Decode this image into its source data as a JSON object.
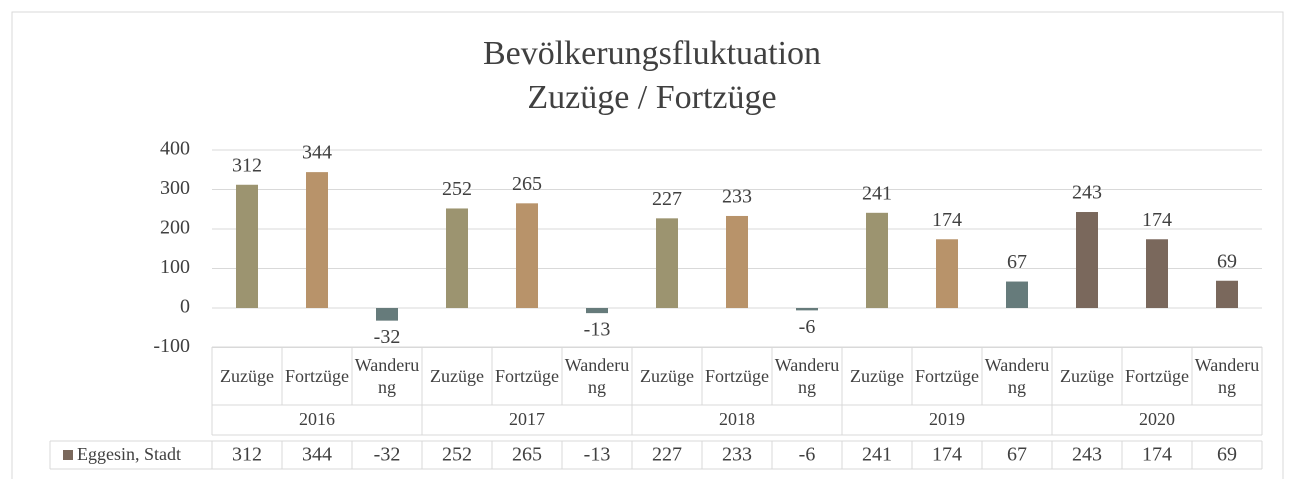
{
  "chart_data": {
    "type": "bar",
    "title": [
      "Bevölkerungsfluktuation",
      "Zuzüge / Fortzüge"
    ],
    "categories": [
      "Zuzüge",
      "Fortzüge",
      "Wanderung",
      "Zuzüge",
      "Fortzüge",
      "Wanderung",
      "Zuzüge",
      "Fortzüge",
      "Wanderung",
      "Zuzüge",
      "Fortzüge",
      "Wanderung",
      "Zuzüge",
      "Fortzüge",
      "Wanderung"
    ],
    "category_groups": [
      "2016",
      "2017",
      "2018",
      "2019",
      "2020"
    ],
    "series": [
      {
        "name": "Eggesin, Stadt",
        "color": "#7a685c",
        "values": [
          312,
          344,
          -32,
          252,
          265,
          -13,
          227,
          233,
          -6,
          241,
          174,
          67,
          243,
          174,
          69
        ],
        "colors": [
          "#9c9470",
          "#b8936a",
          "#667b7b",
          "#9c9470",
          "#b8936a",
          "#667b7b",
          "#9c9470",
          "#b8936a",
          "#667b7b",
          "#9c9470",
          "#b8936a",
          "#667b7b",
          "#7a685c",
          "#7a685c",
          "#7a685c"
        ]
      }
    ],
    "ylim": [
      -100,
      400
    ],
    "yticks": [
      -100,
      0,
      100,
      200,
      300,
      400
    ],
    "grid": true,
    "data_table": true
  }
}
